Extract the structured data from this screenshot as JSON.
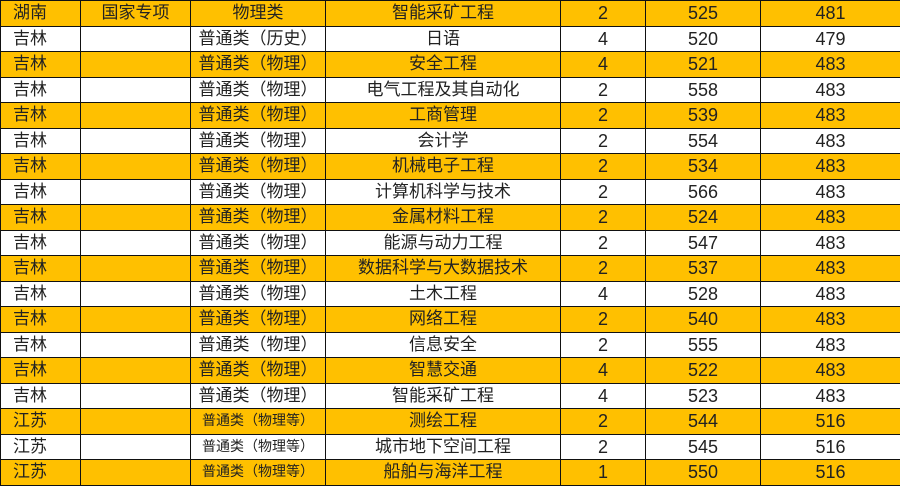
{
  "colors": {
    "highlight": "#FFC000",
    "plain": "#FFFFFF"
  },
  "rows": [
    {
      "province": "湖南",
      "plan": "国家专项",
      "subject": "物理类",
      "major": "智能采矿工程",
      "count": "2",
      "max": "525",
      "min": "481",
      "hl": true
    },
    {
      "province": "吉林",
      "plan": "",
      "subject": "普通类（历史）",
      "major": "日语",
      "count": "4",
      "max": "520",
      "min": "479",
      "hl": false
    },
    {
      "province": "吉林",
      "plan": "",
      "subject": "普通类（物理）",
      "major": "安全工程",
      "count": "4",
      "max": "521",
      "min": "483",
      "hl": true
    },
    {
      "province": "吉林",
      "plan": "",
      "subject": "普通类（物理）",
      "major": "电气工程及其自动化",
      "count": "2",
      "max": "558",
      "min": "483",
      "hl": false
    },
    {
      "province": "吉林",
      "plan": "",
      "subject": "普通类（物理）",
      "major": "工商管理",
      "count": "2",
      "max": "539",
      "min": "483",
      "hl": true
    },
    {
      "province": "吉林",
      "plan": "",
      "subject": "普通类（物理）",
      "major": "会计学",
      "count": "2",
      "max": "554",
      "min": "483",
      "hl": false
    },
    {
      "province": "吉林",
      "plan": "",
      "subject": "普通类（物理）",
      "major": "机械电子工程",
      "count": "2",
      "max": "534",
      "min": "483",
      "hl": true
    },
    {
      "province": "吉林",
      "plan": "",
      "subject": "普通类（物理）",
      "major": "计算机科学与技术",
      "count": "2",
      "max": "566",
      "min": "483",
      "hl": false
    },
    {
      "province": "吉林",
      "plan": "",
      "subject": "普通类（物理）",
      "major": "金属材料工程",
      "count": "2",
      "max": "524",
      "min": "483",
      "hl": true
    },
    {
      "province": "吉林",
      "plan": "",
      "subject": "普通类（物理）",
      "major": "能源与动力工程",
      "count": "2",
      "max": "547",
      "min": "483",
      "hl": false
    },
    {
      "province": "吉林",
      "plan": "",
      "subject": "普通类（物理）",
      "major": "数据科学与大数据技术",
      "count": "2",
      "max": "537",
      "min": "483",
      "hl": true
    },
    {
      "province": "吉林",
      "plan": "",
      "subject": "普通类（物理）",
      "major": "土木工程",
      "count": "4",
      "max": "528",
      "min": "483",
      "hl": false
    },
    {
      "province": "吉林",
      "plan": "",
      "subject": "普通类（物理）",
      "major": "网络工程",
      "count": "2",
      "max": "540",
      "min": "483",
      "hl": true
    },
    {
      "province": "吉林",
      "plan": "",
      "subject": "普通类（物理）",
      "major": "信息安全",
      "count": "2",
      "max": "555",
      "min": "483",
      "hl": false
    },
    {
      "province": "吉林",
      "plan": "",
      "subject": "普通类（物理）",
      "major": "智慧交通",
      "count": "4",
      "max": "522",
      "min": "483",
      "hl": true
    },
    {
      "province": "吉林",
      "plan": "",
      "subject": "普通类（物理）",
      "major": "智能采矿工程",
      "count": "4",
      "max": "523",
      "min": "483",
      "hl": false
    },
    {
      "province": "江苏",
      "plan": "",
      "subject": "普通类（物理等）",
      "major": "测绘工程",
      "count": "2",
      "max": "544",
      "min": "516",
      "hl": true
    },
    {
      "province": "江苏",
      "plan": "",
      "subject": "普通类（物理等）",
      "major": "城市地下空间工程",
      "count": "2",
      "max": "545",
      "min": "516",
      "hl": false
    },
    {
      "province": "江苏",
      "plan": "",
      "subject": "普通类（物理等）",
      "major": "船舶与海洋工程",
      "count": "1",
      "max": "550",
      "min": "516",
      "hl": true
    }
  ]
}
